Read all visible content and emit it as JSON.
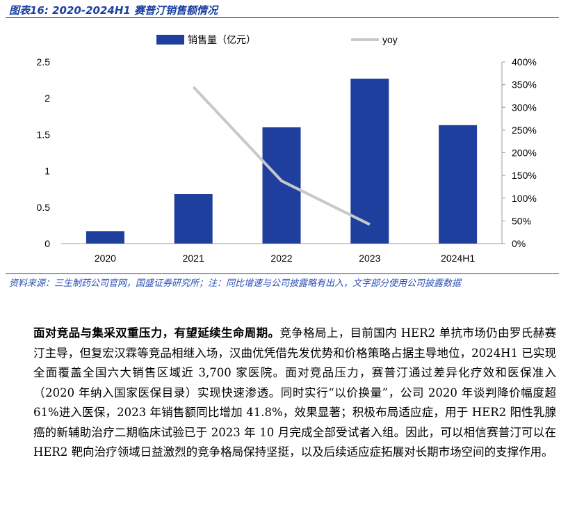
{
  "figure_title": "图表16:  2020-2024H1 赛普汀销售额情况",
  "source_note": "资料来源：三生制药公司官网，国盛证券研究所；注：同比增速与公司披露略有出入，文字部分使用公司披露数据",
  "body": {
    "lead": "面对竞品与集采双重压力，有望延续生命周期。",
    "text": "竞争格局上，目前国内 HER2 单抗市场仍由罗氏赫赛汀主导，但复宏汉霖等竞品相继入场，汉曲优凭借先发优势和价格策略占据主导地位，2024H1 已实现全面覆盖全国六大销售区域近 3,700 家医院。面对竞品压力，赛普汀通过差异化疗效和医保准入（2020 年纳入国家医保目录）实现快速渗透。同时实行“以价换量”，公司 2020 年谈判降价幅度超 61%进入医保，2023 年销售额同比增加 41.8%，效果显著；积极布局适应症，用于 HER2 阳性乳腺癌的新辅助治疗二期临床试验已于 2023 年 10 月完成全部受试者入组。因此，可以相信赛普汀可以在 HER2 靶向治疗领域日益激烈的竞争格局保持坚挺，以及后续适应症拓展对长期市场空间的支撑作用。"
  },
  "chart_data": {
    "type": "bar+line",
    "categories": [
      "2020",
      "2021",
      "2022",
      "2023",
      "2024H1"
    ],
    "series": [
      {
        "name": "销售量（亿元）",
        "type": "bar",
        "axis": "left",
        "values": [
          0.17,
          0.68,
          1.6,
          2.27,
          1.63
        ],
        "color": "#1f3f9e"
      },
      {
        "name": "yoy",
        "type": "line",
        "axis": "right",
        "values": [
          null,
          3.45,
          1.38,
          0.42,
          null
        ],
        "color": "#c8c8c8"
      }
    ],
    "ylim_left": [
      0,
      2.5
    ],
    "yticks_left": [
      "0",
      "0.5",
      "1",
      "1.5",
      "2",
      "2.5"
    ],
    "ylim_right": [
      0,
      4
    ],
    "yticks_right": [
      "0%",
      "50%",
      "100%",
      "150%",
      "200%",
      "250%",
      "300%",
      "350%",
      "400%"
    ],
    "legend_position": "top-center",
    "grid": false
  }
}
